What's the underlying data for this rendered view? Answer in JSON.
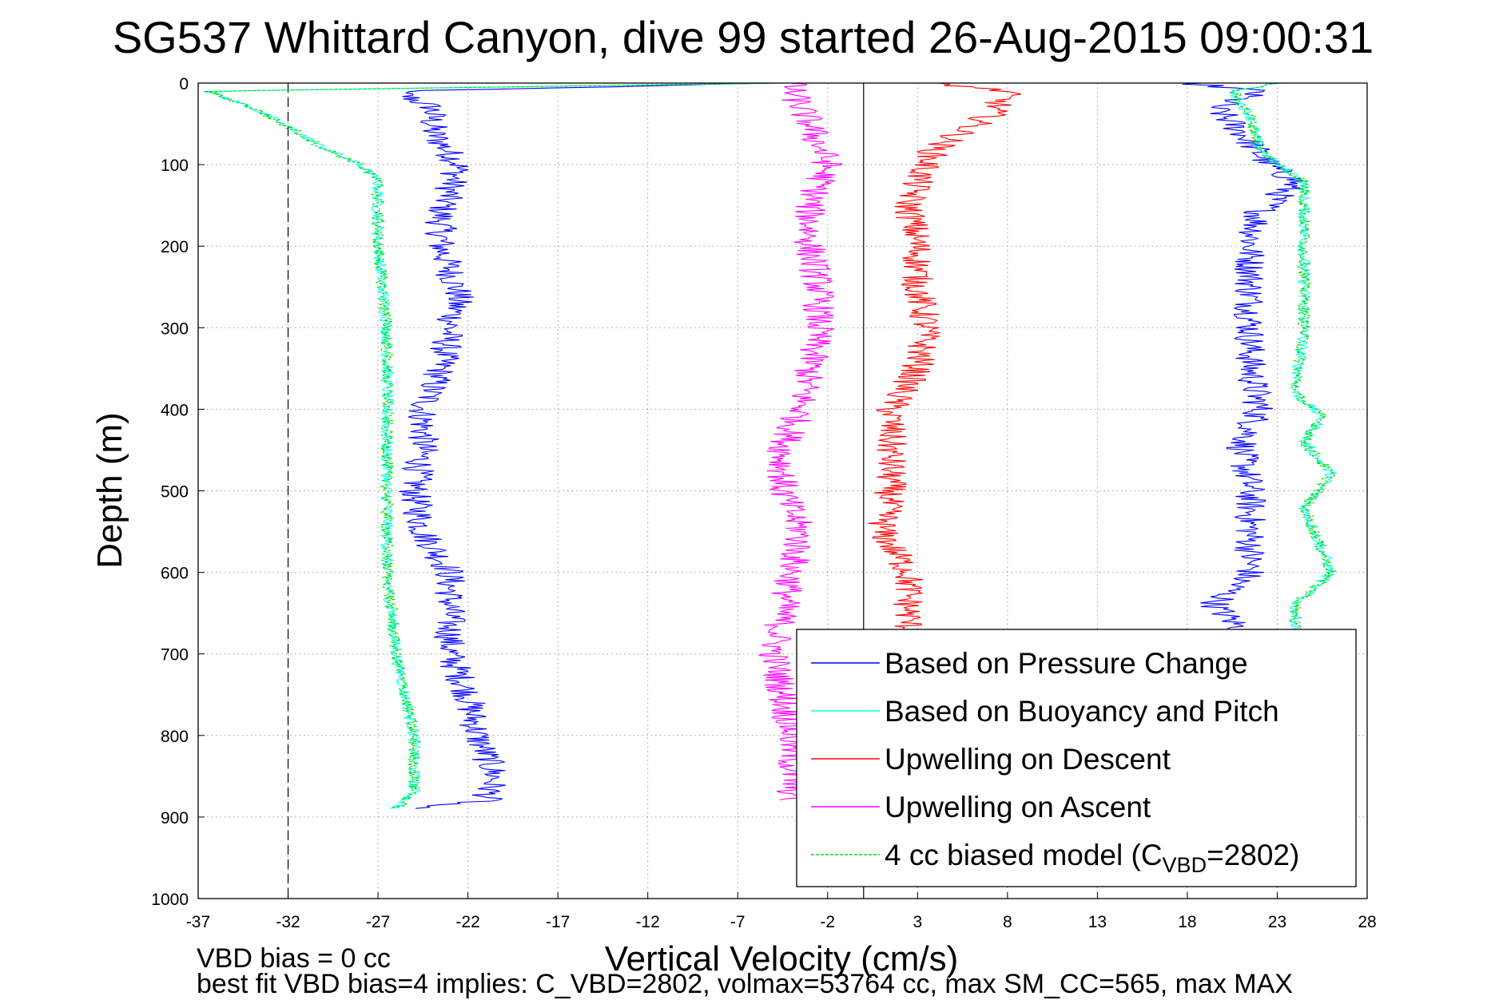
{
  "chart_data": {
    "type": "line",
    "title": "SG537 Whittard Canyon, dive 99 started 26-Aug-2015 09:00:31",
    "xlabel": "Vertical Velocity (cm/s)",
    "ylabel": "Depth (m)",
    "xlim": [
      -37,
      28
    ],
    "ylim": [
      0,
      1000
    ],
    "y_reversed": true,
    "grid": true,
    "xticks": [
      -37,
      -32,
      -27,
      -22,
      -17,
      -12,
      -7,
      -2,
      3,
      8,
      13,
      18,
      23,
      28
    ],
    "yticks": [
      0,
      100,
      200,
      300,
      400,
      500,
      600,
      700,
      800,
      900,
      1000
    ],
    "reference_lines": [
      {
        "x": -32,
        "style": "dashed"
      },
      {
        "x": 0,
        "style": "solid"
      }
    ],
    "legend_position": "bottom-right",
    "series": [
      {
        "name": "Based on Pressure Change",
        "color": "#0000ff",
        "descent": {
          "depth": [
            0,
            10,
            30,
            60,
            100,
            130,
            160,
            200,
            260,
            300,
            350,
            400,
            450,
            500,
            550,
            600,
            650,
            700,
            750,
            800,
            850,
            880,
            890
          ],
          "velocity": [
            -5,
            -26,
            -24,
            -24,
            -22.5,
            -23,
            -23.5,
            -23.5,
            -22.5,
            -23,
            -23.5,
            -24.5,
            -24.5,
            -25,
            -24.5,
            -23,
            -23,
            -23,
            -22,
            -21.5,
            -20.5,
            -21,
            -26
          ]
        },
        "ascent": {
          "depth": [
            0,
            10,
            30,
            60,
            100,
            120,
            160,
            200,
            250,
            300,
            350,
            400,
            450,
            500,
            550,
            600,
            640,
            660,
            680
          ],
          "velocity": [
            18,
            22,
            19.5,
            21,
            22.5,
            24,
            22,
            21.5,
            21.5,
            21.5,
            21.5,
            22,
            21,
            21.5,
            21.5,
            21.5,
            19.5,
            20.5,
            21.5
          ]
        }
      },
      {
        "name": "Based on Buoyancy and Pitch",
        "color": "#00ffff",
        "descent": {
          "depth": [
            0,
            10,
            30,
            60,
            80,
            100,
            120,
            150,
            200,
            300,
            400,
            500,
            600,
            700,
            800,
            870,
            890
          ],
          "velocity": [
            -5,
            -36.5,
            -34,
            -31.5,
            -30,
            -28,
            -27,
            -27,
            -27,
            -26.5,
            -26.5,
            -26.5,
            -26.5,
            -26,
            -25,
            -25,
            -26
          ]
        },
        "ascent": {
          "depth": [
            0,
            10,
            40,
            80,
            100,
            120,
            150,
            200,
            300,
            380,
            410,
            440,
            480,
            520,
            600,
            640,
            680
          ],
          "velocity": [
            23,
            20.5,
            21.5,
            22,
            23,
            24.5,
            24.5,
            24.5,
            24.5,
            24,
            25.5,
            24.5,
            26,
            24.5,
            26,
            24,
            24
          ]
        }
      },
      {
        "name": "Upwelling on Descent",
        "color": "#ff0000",
        "descent": {
          "depth": [
            0,
            10,
            40,
            80,
            120,
            150,
            200,
            250,
            300,
            350,
            400,
            450,
            500,
            550,
            600,
            650,
            680
          ],
          "velocity": [
            4,
            8,
            7,
            4,
            3,
            2.5,
            3,
            3,
            3.5,
            3,
            1.5,
            1.5,
            1.5,
            1,
            2.5,
            2.5,
            2.5
          ]
        }
      },
      {
        "name": "Upwelling on Ascent",
        "color": "#ff00ff",
        "ascent": {
          "depth": [
            0,
            10,
            50,
            100,
            150,
            200,
            250,
            300,
            350,
            400,
            450,
            500,
            550,
            600,
            650,
            700,
            750,
            800,
            850,
            880
          ],
          "velocity": [
            -4,
            -4,
            -3,
            -2,
            -3,
            -3,
            -2.5,
            -2.5,
            -3,
            -3.5,
            -4.5,
            -4.5,
            -3.5,
            -4,
            -4.5,
            -5,
            -4.5,
            -4,
            -4,
            -4
          ]
        }
      },
      {
        "name": "4 cc biased model (C",
        "name_sub": "VBD",
        "name_tail": "=2802)",
        "color": "#00dd00",
        "dashed": true,
        "descent": {
          "depth": [
            0,
            10,
            30,
            60,
            80,
            100,
            120,
            150,
            200,
            300,
            400,
            500,
            600,
            700,
            800,
            870,
            890
          ],
          "velocity": [
            -5,
            -36.5,
            -34,
            -31.5,
            -30,
            -28,
            -27,
            -27,
            -27,
            -26.5,
            -26.5,
            -26.5,
            -26.5,
            -26,
            -25,
            -25,
            -26
          ]
        },
        "ascent": {
          "depth": [
            0,
            10,
            40,
            80,
            100,
            120,
            150,
            200,
            300,
            380,
            410,
            440,
            480,
            520,
            600,
            640,
            680
          ],
          "velocity": [
            23,
            20.5,
            21.5,
            22,
            23,
            24.5,
            24.5,
            24.5,
            24.5,
            24,
            25.5,
            24.5,
            26,
            24.5,
            26,
            24,
            24
          ]
        }
      }
    ],
    "annotations": [
      "VBD bias = 0 cc",
      "best fit VBD bias=4 implies: C_VBD=2802, volmax=53764 cc, max SM_CC=565, max MAX"
    ]
  }
}
